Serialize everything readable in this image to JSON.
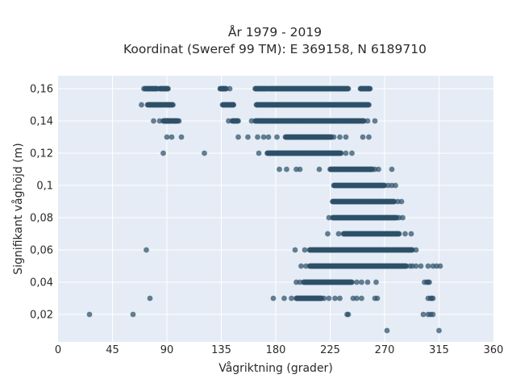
{
  "chart_data": {
    "type": "scatter",
    "title_line1": "År 1979 - 2019",
    "title_line2": "Koordinat (Sweref 99 TM): E 369158, N 6189710",
    "xlabel": "Vågriktning (grader)",
    "ylabel": "Signifikant våghöjd (m)",
    "xlim": [
      0,
      360
    ],
    "ylim": [
      0.003,
      0.168
    ],
    "xticks": [
      0,
      45,
      90,
      135,
      180,
      225,
      270,
      315,
      360
    ],
    "xtick_labels": [
      "0",
      "45",
      "90",
      "135",
      "180",
      "225",
      "270",
      "315",
      "360"
    ],
    "yticks": [
      0.02,
      0.04,
      0.06,
      0.08,
      0.1,
      0.12,
      0.14,
      0.16
    ],
    "ytick_labels": [
      "0,02",
      "0,04",
      "0,06",
      "0,08",
      "0,1",
      "0,12",
      "0,14",
      "0,16"
    ],
    "grid": true,
    "colors": {
      "background": "#e5ecf6",
      "point": "#2e5068",
      "grid": "#ffffff"
    },
    "series": [
      {
        "marker": "circle",
        "ranges": [
          {
            "y": 0.16,
            "x": [
              72,
              82
            ]
          },
          {
            "y": 0.16,
            "x": [
              84,
              91
            ]
          },
          {
            "y": 0.16,
            "x": [
              134,
              139
            ]
          },
          {
            "y": 0.16,
            "x": [
              163,
              173
            ]
          },
          {
            "y": 0.16,
            "x": [
              174,
              240
            ]
          },
          {
            "y": 0.16,
            "x": [
              250,
              258
            ]
          },
          {
            "y": 0.15,
            "x": [
              74,
              87
            ]
          },
          {
            "y": 0.15,
            "x": [
              88,
              95
            ]
          },
          {
            "y": 0.15,
            "x": [
              136,
              145
            ]
          },
          {
            "y": 0.15,
            "x": [
              164,
              257
            ]
          },
          {
            "y": 0.14,
            "x": [
              87,
              92
            ]
          },
          {
            "y": 0.14,
            "x": [
              88,
              99
            ]
          },
          {
            "y": 0.14,
            "x": [
              144,
              149
            ]
          },
          {
            "y": 0.14,
            "x": [
              163,
              253
            ]
          },
          {
            "y": 0.13,
            "x": [
              188,
              226
            ]
          },
          {
            "y": 0.12,
            "x": [
              173,
              234
            ]
          },
          {
            "y": 0.11,
            "x": [
              225,
              260
            ]
          },
          {
            "y": 0.1,
            "x": [
              228,
              270
            ]
          },
          {
            "y": 0.09,
            "x": [
              227,
              278
            ]
          },
          {
            "y": 0.08,
            "x": [
              227,
              280
            ]
          },
          {
            "y": 0.07,
            "x": [
              236,
              282
            ]
          },
          {
            "y": 0.06,
            "x": [
              208,
              293
            ]
          },
          {
            "y": 0.05,
            "x": [
              208,
              288
            ]
          },
          {
            "y": 0.04,
            "x": [
              203,
              243
            ]
          },
          {
            "y": 0.03,
            "x": [
              197,
              218
            ]
          }
        ],
        "points": [
          {
            "x": 69,
            "y": 0.15
          },
          {
            "x": 71,
            "y": 0.16
          },
          {
            "x": 91,
            "y": 0.15
          },
          {
            "x": 79,
            "y": 0.14
          },
          {
            "x": 84,
            "y": 0.14
          },
          {
            "x": 100,
            "y": 0.14
          },
          {
            "x": 90,
            "y": 0.13
          },
          {
            "x": 94,
            "y": 0.13
          },
          {
            "x": 102,
            "y": 0.13
          },
          {
            "x": 96,
            "y": 0.14
          },
          {
            "x": 87,
            "y": 0.12
          },
          {
            "x": 121,
            "y": 0.12
          },
          {
            "x": 142,
            "y": 0.16
          },
          {
            "x": 137,
            "y": 0.16
          },
          {
            "x": 141,
            "y": 0.14
          },
          {
            "x": 145,
            "y": 0.15
          },
          {
            "x": 149,
            "y": 0.13
          },
          {
            "x": 160,
            "y": 0.14
          },
          {
            "x": 169,
            "y": 0.14
          },
          {
            "x": 157,
            "y": 0.13
          },
          {
            "x": 165,
            "y": 0.13
          },
          {
            "x": 170,
            "y": 0.13
          },
          {
            "x": 174,
            "y": 0.13
          },
          {
            "x": 181,
            "y": 0.13
          },
          {
            "x": 228,
            "y": 0.13
          },
          {
            "x": 233,
            "y": 0.13
          },
          {
            "x": 238,
            "y": 0.13
          },
          {
            "x": 252,
            "y": 0.13
          },
          {
            "x": 257,
            "y": 0.13
          },
          {
            "x": 256,
            "y": 0.14
          },
          {
            "x": 262,
            "y": 0.14
          },
          {
            "x": 166,
            "y": 0.12
          },
          {
            "x": 238,
            "y": 0.12
          },
          {
            "x": 243,
            "y": 0.12
          },
          {
            "x": 183,
            "y": 0.11
          },
          {
            "x": 189,
            "y": 0.11
          },
          {
            "x": 197,
            "y": 0.11
          },
          {
            "x": 200,
            "y": 0.11
          },
          {
            "x": 216,
            "y": 0.11
          },
          {
            "x": 262,
            "y": 0.11
          },
          {
            "x": 265,
            "y": 0.11
          },
          {
            "x": 276,
            "y": 0.11
          },
          {
            "x": 273,
            "y": 0.1
          },
          {
            "x": 276,
            "y": 0.1
          },
          {
            "x": 279,
            "y": 0.1
          },
          {
            "x": 281,
            "y": 0.09
          },
          {
            "x": 284,
            "y": 0.09
          },
          {
            "x": 224,
            "y": 0.08
          },
          {
            "x": 282,
            "y": 0.08
          },
          {
            "x": 285,
            "y": 0.08
          },
          {
            "x": 223,
            "y": 0.07
          },
          {
            "x": 232,
            "y": 0.07
          },
          {
            "x": 287,
            "y": 0.07
          },
          {
            "x": 292,
            "y": 0.07
          },
          {
            "x": 73,
            "y": 0.06
          },
          {
            "x": 196,
            "y": 0.06
          },
          {
            "x": 204,
            "y": 0.06
          },
          {
            "x": 296,
            "y": 0.06
          },
          {
            "x": 201,
            "y": 0.05
          },
          {
            "x": 205,
            "y": 0.05
          },
          {
            "x": 212,
            "y": 0.05
          },
          {
            "x": 291,
            "y": 0.05
          },
          {
            "x": 293,
            "y": 0.05
          },
          {
            "x": 296,
            "y": 0.05
          },
          {
            "x": 300,
            "y": 0.05
          },
          {
            "x": 306,
            "y": 0.05
          },
          {
            "x": 310,
            "y": 0.05
          },
          {
            "x": 313,
            "y": 0.05
          },
          {
            "x": 316,
            "y": 0.05
          },
          {
            "x": 197,
            "y": 0.04
          },
          {
            "x": 200,
            "y": 0.04
          },
          {
            "x": 247,
            "y": 0.04
          },
          {
            "x": 251,
            "y": 0.04
          },
          {
            "x": 256,
            "y": 0.04
          },
          {
            "x": 263,
            "y": 0.04
          },
          {
            "x": 303,
            "y": 0.04
          },
          {
            "x": 305,
            "y": 0.04
          },
          {
            "x": 306,
            "y": 0.04
          },
          {
            "x": 307,
            "y": 0.04
          },
          {
            "x": 76,
            "y": 0.03
          },
          {
            "x": 178,
            "y": 0.03
          },
          {
            "x": 187,
            "y": 0.03
          },
          {
            "x": 193,
            "y": 0.03
          },
          {
            "x": 220,
            "y": 0.03
          },
          {
            "x": 224,
            "y": 0.03
          },
          {
            "x": 229,
            "y": 0.03
          },
          {
            "x": 233,
            "y": 0.03
          },
          {
            "x": 244,
            "y": 0.03
          },
          {
            "x": 247,
            "y": 0.03
          },
          {
            "x": 251,
            "y": 0.03
          },
          {
            "x": 262,
            "y": 0.03
          },
          {
            "x": 264,
            "y": 0.03
          },
          {
            "x": 306,
            "y": 0.03
          },
          {
            "x": 308,
            "y": 0.03
          },
          {
            "x": 309,
            "y": 0.03
          },
          {
            "x": 310,
            "y": 0.03
          },
          {
            "x": 26,
            "y": 0.02
          },
          {
            "x": 62,
            "y": 0.02
          },
          {
            "x": 239,
            "y": 0.02
          },
          {
            "x": 240,
            "y": 0.02
          },
          {
            "x": 302,
            "y": 0.02
          },
          {
            "x": 306,
            "y": 0.02
          },
          {
            "x": 308,
            "y": 0.02
          },
          {
            "x": 310,
            "y": 0.02
          },
          {
            "x": 272,
            "y": 0.01
          },
          {
            "x": 315,
            "y": 0.01
          }
        ]
      }
    ]
  }
}
